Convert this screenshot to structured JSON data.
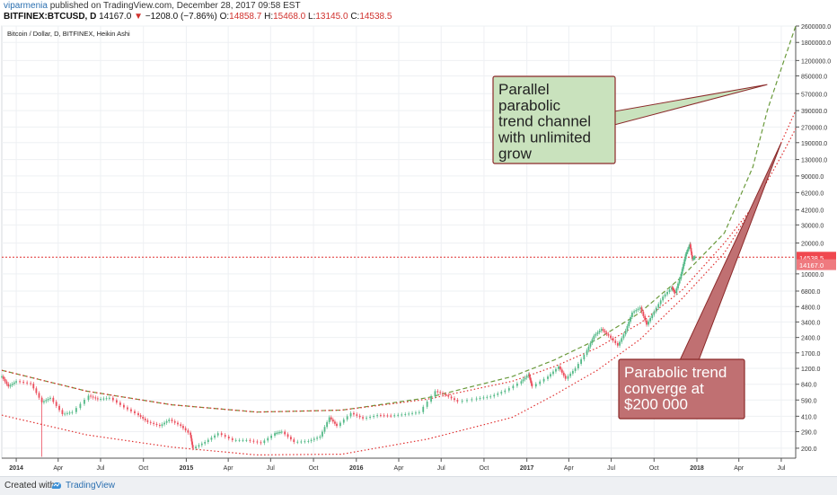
{
  "header": {
    "author": "viparmenia",
    "published": "published on TradingView.com, December 28, 2017 09:58 EST",
    "symbol": "BITFINEX:BTCUSD, D",
    "last": "14167.0",
    "change": "−1208.0 (−7.86%)",
    "open_label": "O:",
    "open": "14858.7",
    "high_label": "H:",
    "high": "15468.0",
    "low_label": "L:",
    "low": "13145.0",
    "close_label": "C:",
    "close": "14538.5"
  },
  "chart_data": {
    "type": "line",
    "title": "Bitcoin / Dollar, D, BITFINEX, Heikin Ashi",
    "y_scale": "log",
    "ylim": [
      160,
      2600000
    ],
    "xlim": [
      "2013-12-01",
      "2018-08-01"
    ],
    "y_ticks": [
      "2600000.0",
      "1800000.0",
      "1200000.0",
      "850000.0",
      "570000.0",
      "390000.0",
      "270000.0",
      "190000.0",
      "130000.0",
      "90000.0",
      "62000.0",
      "42000.0",
      "30000.0",
      "20000.0",
      "10000.0",
      "6800.0",
      "4800.0",
      "3400.0",
      "2400.0",
      "1700.0",
      "1200.0",
      "840.0",
      "590.0",
      "410.0",
      "290.0",
      "200.0"
    ],
    "x_ticks": [
      {
        "label": "2014",
        "date": "2014-01-01",
        "bold": true
      },
      {
        "label": "Apr",
        "date": "2014-04-01"
      },
      {
        "label": "Jul",
        "date": "2014-07-01"
      },
      {
        "label": "Oct",
        "date": "2014-10-01"
      },
      {
        "label": "2015",
        "date": "2015-01-01",
        "bold": true
      },
      {
        "label": "Apr",
        "date": "2015-04-01"
      },
      {
        "label": "Jul",
        "date": "2015-07-01"
      },
      {
        "label": "Oct",
        "date": "2015-10-01"
      },
      {
        "label": "2016",
        "date": "2016-01-01",
        "bold": true
      },
      {
        "label": "Apr",
        "date": "2016-04-01"
      },
      {
        "label": "Jul",
        "date": "2016-07-01"
      },
      {
        "label": "Oct",
        "date": "2016-10-01"
      },
      {
        "label": "2017",
        "date": "2017-01-01",
        "bold": true
      },
      {
        "label": "Apr",
        "date": "2017-04-01"
      },
      {
        "label": "Jul",
        "date": "2017-07-01"
      },
      {
        "label": "Oct",
        "date": "2017-10-01"
      },
      {
        "label": "2018",
        "date": "2018-01-01",
        "bold": true
      },
      {
        "label": "Apr",
        "date": "2018-04-01"
      },
      {
        "label": "Jul",
        "date": "2018-07-01"
      }
    ],
    "series": [
      {
        "values": [
          [
            "2013-12-01",
            1000
          ],
          [
            "2013-12-15",
            800
          ],
          [
            "2014-01-01",
            900
          ],
          [
            "2014-02-01",
            850
          ],
          [
            "2014-02-25",
            560
          ],
          [
            "2014-03-15",
            620
          ],
          [
            "2014-04-10",
            430
          ],
          [
            "2014-05-01",
            450
          ],
          [
            "2014-06-05",
            650
          ],
          [
            "2014-06-25",
            600
          ],
          [
            "2014-07-20",
            620
          ],
          [
            "2014-08-20",
            500
          ],
          [
            "2014-09-20",
            420
          ],
          [
            "2014-10-10",
            360
          ],
          [
            "2014-11-05",
            330
          ],
          [
            "2014-11-25",
            380
          ],
          [
            "2014-12-20",
            330
          ],
          [
            "2015-01-10",
            270
          ],
          [
            "2015-01-15",
            200
          ],
          [
            "2015-02-10",
            230
          ],
          [
            "2015-03-10",
            280
          ],
          [
            "2015-04-10",
            240
          ],
          [
            "2015-05-10",
            240
          ],
          [
            "2015-06-10",
            225
          ],
          [
            "2015-07-10",
            280
          ],
          [
            "2015-07-25",
            290
          ],
          [
            "2015-08-20",
            230
          ],
          [
            "2015-09-20",
            235
          ],
          [
            "2015-10-15",
            260
          ],
          [
            "2015-11-04",
            400
          ],
          [
            "2015-11-20",
            330
          ],
          [
            "2015-12-20",
            440
          ],
          [
            "2016-01-15",
            390
          ],
          [
            "2016-02-15",
            420
          ],
          [
            "2016-03-15",
            415
          ],
          [
            "2016-04-15",
            430
          ],
          [
            "2016-05-15",
            450
          ],
          [
            "2016-06-18",
            720
          ],
          [
            "2016-07-10",
            660
          ],
          [
            "2016-08-05",
            570
          ],
          [
            "2016-09-15",
            610
          ],
          [
            "2016-10-15",
            640
          ],
          [
            "2016-11-15",
            730
          ],
          [
            "2016-12-20",
            900
          ],
          [
            "2017-01-05",
            1050
          ],
          [
            "2017-01-12",
            800
          ],
          [
            "2017-02-15",
            1000
          ],
          [
            "2017-03-10",
            1250
          ],
          [
            "2017-03-25",
            950
          ],
          [
            "2017-04-15",
            1200
          ],
          [
            "2017-05-10",
            1800
          ],
          [
            "2017-05-25",
            2500
          ],
          [
            "2017-06-10",
            2900
          ],
          [
            "2017-06-25",
            2500
          ],
          [
            "2017-07-15",
            2000
          ],
          [
            "2017-08-01",
            2800
          ],
          [
            "2017-08-15",
            4200
          ],
          [
            "2017-09-01",
            4700
          ],
          [
            "2017-09-15",
            3200
          ],
          [
            "2017-10-01",
            4300
          ],
          [
            "2017-10-20",
            6000
          ],
          [
            "2017-11-08",
            7400
          ],
          [
            "2017-11-15",
            6500
          ],
          [
            "2017-11-28",
            10000
          ],
          [
            "2017-12-08",
            15500
          ],
          [
            "2017-12-17",
            19500
          ],
          [
            "2017-12-22",
            14000
          ],
          [
            "2017-12-28",
            14538.5
          ]
        ]
      }
    ],
    "trendlines": [
      {
        "name": "outer",
        "style": "dashed",
        "color": "#6a9a3c",
        "points": [
          [
            "2013-12-01",
            1150
          ],
          [
            "2014-06-01",
            720
          ],
          [
            "2014-12-01",
            530
          ],
          [
            "2015-06-01",
            450
          ],
          [
            "2015-12-01",
            470
          ],
          [
            "2016-06-01",
            620
          ],
          [
            "2016-12-01",
            1000
          ],
          [
            "2017-03-01",
            1450
          ],
          [
            "2017-06-01",
            2300
          ],
          [
            "2017-09-01",
            4200
          ],
          [
            "2017-12-01",
            9500
          ],
          [
            "2018-03-01",
            25000
          ],
          [
            "2018-05-01",
            110000
          ],
          [
            "2018-06-01",
            390000
          ],
          [
            "2018-07-01",
            1000000
          ],
          [
            "2018-08-01",
            2600000
          ]
        ]
      },
      {
        "name": "upper",
        "style": "dotted",
        "color": "#e03030",
        "points": [
          [
            "2013-12-01",
            1150
          ],
          [
            "2014-06-01",
            720
          ],
          [
            "2014-12-01",
            530
          ],
          [
            "2015-06-01",
            450
          ],
          [
            "2015-12-01",
            470
          ],
          [
            "2016-06-01",
            600
          ],
          [
            "2016-12-01",
            900
          ],
          [
            "2017-03-01",
            1250
          ],
          [
            "2017-06-01",
            1900
          ],
          [
            "2017-09-01",
            3300
          ],
          [
            "2017-12-01",
            7000
          ],
          [
            "2018-03-01",
            20000
          ],
          [
            "2018-05-01",
            45000
          ],
          [
            "2018-07-01",
            140000
          ],
          [
            "2018-08-01",
            260000
          ]
        ]
      },
      {
        "name": "lower",
        "style": "dotted",
        "color": "#e03030",
        "points": [
          [
            "2013-12-01",
            420
          ],
          [
            "2014-06-01",
            270
          ],
          [
            "2014-12-01",
            205
          ],
          [
            "2015-06-01",
            172
          ],
          [
            "2015-12-01",
            175
          ],
          [
            "2016-06-01",
            245
          ],
          [
            "2016-12-01",
            400
          ],
          [
            "2017-03-01",
            660
          ],
          [
            "2017-06-01",
            1150
          ],
          [
            "2017-09-01",
            2300
          ],
          [
            "2017-12-01",
            5800
          ],
          [
            "2018-03-01",
            16000
          ],
          [
            "2018-05-01",
            45000
          ],
          [
            "2018-07-01",
            190000
          ],
          [
            "2018-08-01",
            390000
          ]
        ]
      }
    ],
    "price_line": {
      "value": 14538.5,
      "color": "#e03030"
    },
    "price_tags": [
      {
        "label": "14538.5",
        "value": 14538.5,
        "color": "#f0484f"
      },
      {
        "label": "14167.0",
        "value": 12300,
        "color": "#ef7a7f"
      }
    ],
    "annotations": [
      {
        "lines": [
          "Parallel",
          "parabolic",
          "trend channel",
          "with unlimited",
          "grow"
        ],
        "fill": "#c9e2bd",
        "stroke": "#8b2a2a",
        "text_color": "#222222",
        "target": [
          "2018-06-01",
          700000
        ]
      },
      {
        "lines": [
          "Parabolic trend",
          "converge at",
          "$200 000"
        ],
        "fill": "#c07072",
        "stroke": "#8b2a2a",
        "text_color": "#ffffff",
        "target": [
          "2018-07-01",
          190000
        ]
      }
    ]
  },
  "footer": {
    "created": "Created with",
    "brand": "TradingView"
  },
  "colors": {
    "up": "#53b987",
    "down": "#eb4d5c",
    "axis": "#333333",
    "grid": "#eef0f3"
  }
}
